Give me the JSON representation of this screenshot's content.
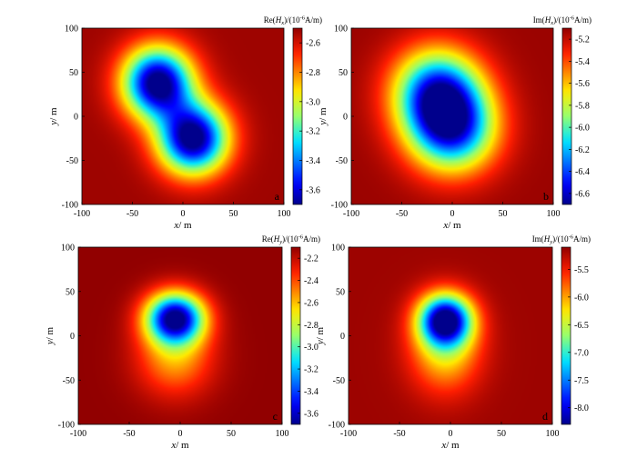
{
  "chart_data": [
    {
      "type": "heatmap",
      "panel_label": "a",
      "colorbar_title": "Re(H_x)/(10^-6A/m)",
      "xlabel": "x/ m",
      "ylabel": "y/ m",
      "xlim": [
        -100,
        100
      ],
      "ylim": [
        -100,
        100
      ],
      "x_ticks": [
        -100,
        -50,
        0,
        50,
        100
      ],
      "y_ticks": [
        100,
        50,
        0,
        -50,
        -100
      ],
      "colorbar_range": [
        -3.7,
        -2.5
      ],
      "colorbar_ticks": [
        -2.6,
        -2.8,
        -3.0,
        -3.2,
        -3.4,
        -3.6
      ],
      "background_value": -2.52,
      "anomalies": [
        {
          "x": -25,
          "y": 38,
          "sx": 24,
          "sy": 28,
          "amplitude": -1.25
        },
        {
          "x": 10,
          "y": -25,
          "sx": 24,
          "sy": 28,
          "amplitude": -1.25
        }
      ]
    },
    {
      "type": "heatmap",
      "panel_label": "b",
      "colorbar_title": "Im(H_x)/(10^-6A/m)",
      "xlabel": "x/ m",
      "ylabel": "y/ m",
      "xlim": [
        -100,
        100
      ],
      "ylim": [
        -100,
        100
      ],
      "x_ticks": [
        -100,
        -50,
        0,
        50,
        100
      ],
      "y_ticks": [
        100,
        50,
        0,
        -50,
        -100
      ],
      "colorbar_range": [
        -6.7,
        -5.1
      ],
      "colorbar_ticks": [
        -5.2,
        -5.4,
        -5.6,
        -5.8,
        -6.0,
        -6.2,
        -6.4,
        -6.6
      ],
      "background_value": -5.12,
      "anomalies": [
        {
          "x": -15,
          "y": 28,
          "sx": 30,
          "sy": 34,
          "amplitude": -1.25
        },
        {
          "x": 0,
          "y": -15,
          "sx": 30,
          "sy": 34,
          "amplitude": -1.25
        }
      ]
    },
    {
      "type": "heatmap",
      "panel_label": "c",
      "colorbar_title": "Re(H_y)/(10^-6A/m)",
      "xlabel": "x/ m",
      "ylabel": "y/ m",
      "xlim": [
        -100,
        100
      ],
      "ylim": [
        -100,
        100
      ],
      "x_ticks": [
        -100,
        -50,
        0,
        50,
        100
      ],
      "y_ticks": [
        100,
        50,
        0,
        -50,
        -100
      ],
      "colorbar_range": [
        -3.7,
        -2.1
      ],
      "colorbar_ticks": [
        -2.2,
        -2.4,
        -2.6,
        -2.8,
        -3.0,
        -3.2,
        -3.4,
        -3.6
      ],
      "background_value": -2.1,
      "anomalies": [
        {
          "x": -5,
          "y": 20,
          "sx": 20,
          "sy": 20,
          "amplitude": -1.6
        },
        {
          "x": -5,
          "y": -25,
          "sx": 26,
          "sy": 30,
          "amplitude": -0.45
        }
      ]
    },
    {
      "type": "heatmap",
      "panel_label": "d",
      "colorbar_title": "Im(H_y)/(10^-6A/m)",
      "xlabel": "x/ m",
      "ylabel": "y/ m",
      "xlim": [
        -100,
        100
      ],
      "ylim": [
        -100,
        100
      ],
      "x_ticks": [
        -100,
        -50,
        0,
        50,
        100
      ],
      "y_ticks": [
        100,
        50,
        0,
        -50,
        -100
      ],
      "colorbar_range": [
        -8.3,
        -5.1
      ],
      "colorbar_ticks": [
        -5.5,
        -6.0,
        -6.5,
        -7.0,
        -7.5,
        -8.0
      ],
      "background_value": -5.15,
      "anomalies": [
        {
          "x": -5,
          "y": 18,
          "sx": 18,
          "sy": 20,
          "amplitude": -3.0
        },
        {
          "x": -5,
          "y": -15,
          "sx": 24,
          "sy": 34,
          "amplitude": -1.1
        }
      ]
    }
  ]
}
